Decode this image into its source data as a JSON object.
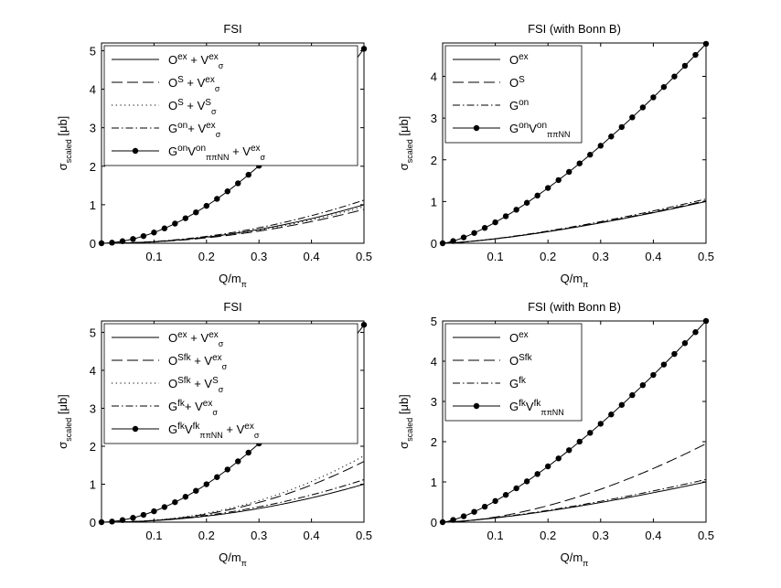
{
  "figure": {
    "y_axis_label": {
      "main": "σ",
      "sub": "scaled",
      "unit": " [μb]"
    },
    "x_axis_label": {
      "main": "Q/m",
      "sub": "π"
    }
  },
  "chart_data": [
    {
      "type": "line",
      "title": "FSI",
      "xlabel": "Q/mπ",
      "ylabel": "σscaled [μb]",
      "xlim": [
        0,
        0.5
      ],
      "ylim": [
        0,
        5.2
      ],
      "xticks": [
        "0.1",
        "0.2",
        "0.3",
        "0.4",
        "0.5"
      ],
      "yticks": [
        "0",
        "1",
        "2",
        "3",
        "4",
        "5"
      ],
      "legend_position": "top-left",
      "series": [
        {
          "name": "Oex + Vexσ",
          "style": "solid",
          "final_value": 1.0,
          "exponent": 2.0,
          "legend": [
            {
              "t": "O"
            },
            {
              "t": "ex",
              "sup": true
            },
            {
              "t": " + V"
            },
            {
              "t": "ex",
              "sup": true
            },
            {
              "t": "σ",
              "sub": true
            }
          ]
        },
        {
          "name": "OS + Vexσ",
          "style": "dashed",
          "final_value": 0.88,
          "exponent": 2.0,
          "legend": [
            {
              "t": "O"
            },
            {
              "t": "S",
              "sup": true
            },
            {
              "t": " + V"
            },
            {
              "t": "ex",
              "sup": true
            },
            {
              "t": "σ",
              "sub": true
            }
          ]
        },
        {
          "name": "OS + VSσ",
          "style": "dotted",
          "final_value": 0.95,
          "exponent": 2.0,
          "legend": [
            {
              "t": "O"
            },
            {
              "t": "S",
              "sup": true
            },
            {
              "t": " + V"
            },
            {
              "t": "S",
              "sup": true
            },
            {
              "t": "σ",
              "sub": true
            }
          ]
        },
        {
          "name": "Gon + Vexσ",
          "style": "dashdot",
          "final_value": 1.12,
          "exponent": 2.0,
          "legend": [
            {
              "t": "G"
            },
            {
              "t": "on",
              "sup": true
            },
            {
              "t": "+ V"
            },
            {
              "t": "ex",
              "sup": true
            },
            {
              "t": "σ",
              "sub": true
            }
          ]
        },
        {
          "name": "GonVonππNN + Vexσ",
          "style": "solid-dots",
          "final_value": 5.05,
          "exponent": 1.8,
          "legend": [
            {
              "t": "G"
            },
            {
              "t": "on",
              "sup": true
            },
            {
              "t": "V"
            },
            {
              "t": "on",
              "sup": true
            },
            {
              "t": "ππNN",
              "sub": true
            },
            {
              "t": " + V"
            },
            {
              "t": "ex",
              "sup": true
            },
            {
              "t": "σ",
              "sub": true
            }
          ]
        }
      ]
    },
    {
      "type": "line",
      "title": "FSI (with Bonn B)",
      "xlabel": "Q/mπ",
      "ylabel": "σscaled [μb]",
      "xlim": [
        0,
        0.5
      ],
      "ylim": [
        0,
        4.8
      ],
      "xticks": [
        "0.1",
        "0.2",
        "0.3",
        "0.4",
        "0.5"
      ],
      "yticks": [
        "0",
        "1",
        "2",
        "3",
        "4"
      ],
      "legend_position": "top-left",
      "series": [
        {
          "name": "Oex",
          "style": "solid",
          "final_value": 1.0,
          "exponent": 1.4,
          "legend": [
            {
              "t": "O"
            },
            {
              "t": "ex",
              "sup": true
            }
          ]
        },
        {
          "name": "OS",
          "style": "dashed",
          "final_value": 1.02,
          "exponent": 1.4,
          "legend": [
            {
              "t": "O"
            },
            {
              "t": "S",
              "sup": true
            }
          ]
        },
        {
          "name": "Gon",
          "style": "dashdot",
          "final_value": 1.06,
          "exponent": 1.4,
          "legend": [
            {
              "t": "G"
            },
            {
              "t": "on",
              "sup": true
            }
          ]
        },
        {
          "name": "GonVonππNN",
          "style": "solid-dots",
          "final_value": 4.78,
          "exponent": 1.4,
          "legend": [
            {
              "t": "G"
            },
            {
              "t": "on",
              "sup": true
            },
            {
              "t": "V"
            },
            {
              "t": "on",
              "sup": true
            },
            {
              "t": "ππNN",
              "sub": true
            }
          ]
        }
      ]
    },
    {
      "type": "line",
      "title": "FSI",
      "xlabel": "Q/mπ",
      "ylabel": "σscaled [μb]",
      "xlim": [
        0,
        0.5
      ],
      "ylim": [
        0,
        5.3
      ],
      "xticks": [
        "0.1",
        "0.2",
        "0.3",
        "0.4",
        "0.5"
      ],
      "yticks": [
        "0",
        "1",
        "2",
        "3",
        "4",
        "5"
      ],
      "legend_position": "top-left",
      "series": [
        {
          "name": "Oex + Vexσ",
          "style": "solid",
          "final_value": 1.0,
          "exponent": 2.0,
          "legend": [
            {
              "t": "O"
            },
            {
              "t": "ex",
              "sup": true
            },
            {
              "t": " + V"
            },
            {
              "t": "ex",
              "sup": true
            },
            {
              "t": "σ",
              "sub": true
            }
          ]
        },
        {
          "name": "OSfk + Vexσ",
          "style": "dashed",
          "final_value": 1.6,
          "exponent": 2.2,
          "legend": [
            {
              "t": "O"
            },
            {
              "t": "Sfk",
              "sup": true
            },
            {
              "t": " + V"
            },
            {
              "t": "ex",
              "sup": true
            },
            {
              "t": "σ",
              "sub": true
            }
          ]
        },
        {
          "name": "OSfk + VSσ",
          "style": "dotted",
          "final_value": 1.75,
          "exponent": 2.2,
          "legend": [
            {
              "t": "O"
            },
            {
              "t": "Sfk",
              "sup": true
            },
            {
              "t": " + V"
            },
            {
              "t": "S",
              "sup": true
            },
            {
              "t": "σ",
              "sub": true
            }
          ]
        },
        {
          "name": "Gfk + Vexσ",
          "style": "dashdot",
          "final_value": 1.12,
          "exponent": 2.0,
          "legend": [
            {
              "t": "G"
            },
            {
              "t": "fk",
              "sup": true
            },
            {
              "t": "+ V"
            },
            {
              "t": "ex",
              "sup": true
            },
            {
              "t": "σ",
              "sub": true
            }
          ]
        },
        {
          "name": "GfkVfkππNN + Vexσ",
          "style": "solid-dots",
          "final_value": 5.2,
          "exponent": 1.8,
          "legend": [
            {
              "t": "G"
            },
            {
              "t": "fk",
              "sup": true
            },
            {
              "t": "V"
            },
            {
              "t": "fk",
              "sup": true
            },
            {
              "t": "ππNN",
              "sub": true
            },
            {
              "t": " + V"
            },
            {
              "t": "ex",
              "sup": true
            },
            {
              "t": "σ",
              "sub": true
            }
          ]
        }
      ]
    },
    {
      "type": "line",
      "title": "FSI (with Bonn B)",
      "xlabel": "Q/mπ",
      "ylabel": "σscaled [μb]",
      "xlim": [
        0,
        0.5
      ],
      "ylim": [
        0,
        5.0
      ],
      "xticks": [
        "0.1",
        "0.2",
        "0.3",
        "0.4",
        "0.5"
      ],
      "yticks": [
        "0",
        "1",
        "2",
        "3",
        "4",
        "5"
      ],
      "legend_position": "top-left",
      "series": [
        {
          "name": "Oex",
          "style": "solid",
          "final_value": 1.0,
          "exponent": 1.4,
          "legend": [
            {
              "t": "O"
            },
            {
              "t": "ex",
              "sup": true
            }
          ]
        },
        {
          "name": "OSfk",
          "style": "dashed",
          "final_value": 1.95,
          "exponent": 1.7,
          "legend": [
            {
              "t": "O"
            },
            {
              "t": "Sfk",
              "sup": true
            }
          ]
        },
        {
          "name": "Gfk",
          "style": "dashdot",
          "final_value": 1.06,
          "exponent": 1.4,
          "legend": [
            {
              "t": "G"
            },
            {
              "t": "fk",
              "sup": true
            }
          ]
        },
        {
          "name": "GfkVfkππNN",
          "style": "solid-dots",
          "final_value": 5.0,
          "exponent": 1.4,
          "legend": [
            {
              "t": "G"
            },
            {
              "t": "fk",
              "sup": true
            },
            {
              "t": "V"
            },
            {
              "t": "fk",
              "sup": true
            },
            {
              "t": "ππNN",
              "sub": true
            }
          ]
        }
      ]
    }
  ]
}
